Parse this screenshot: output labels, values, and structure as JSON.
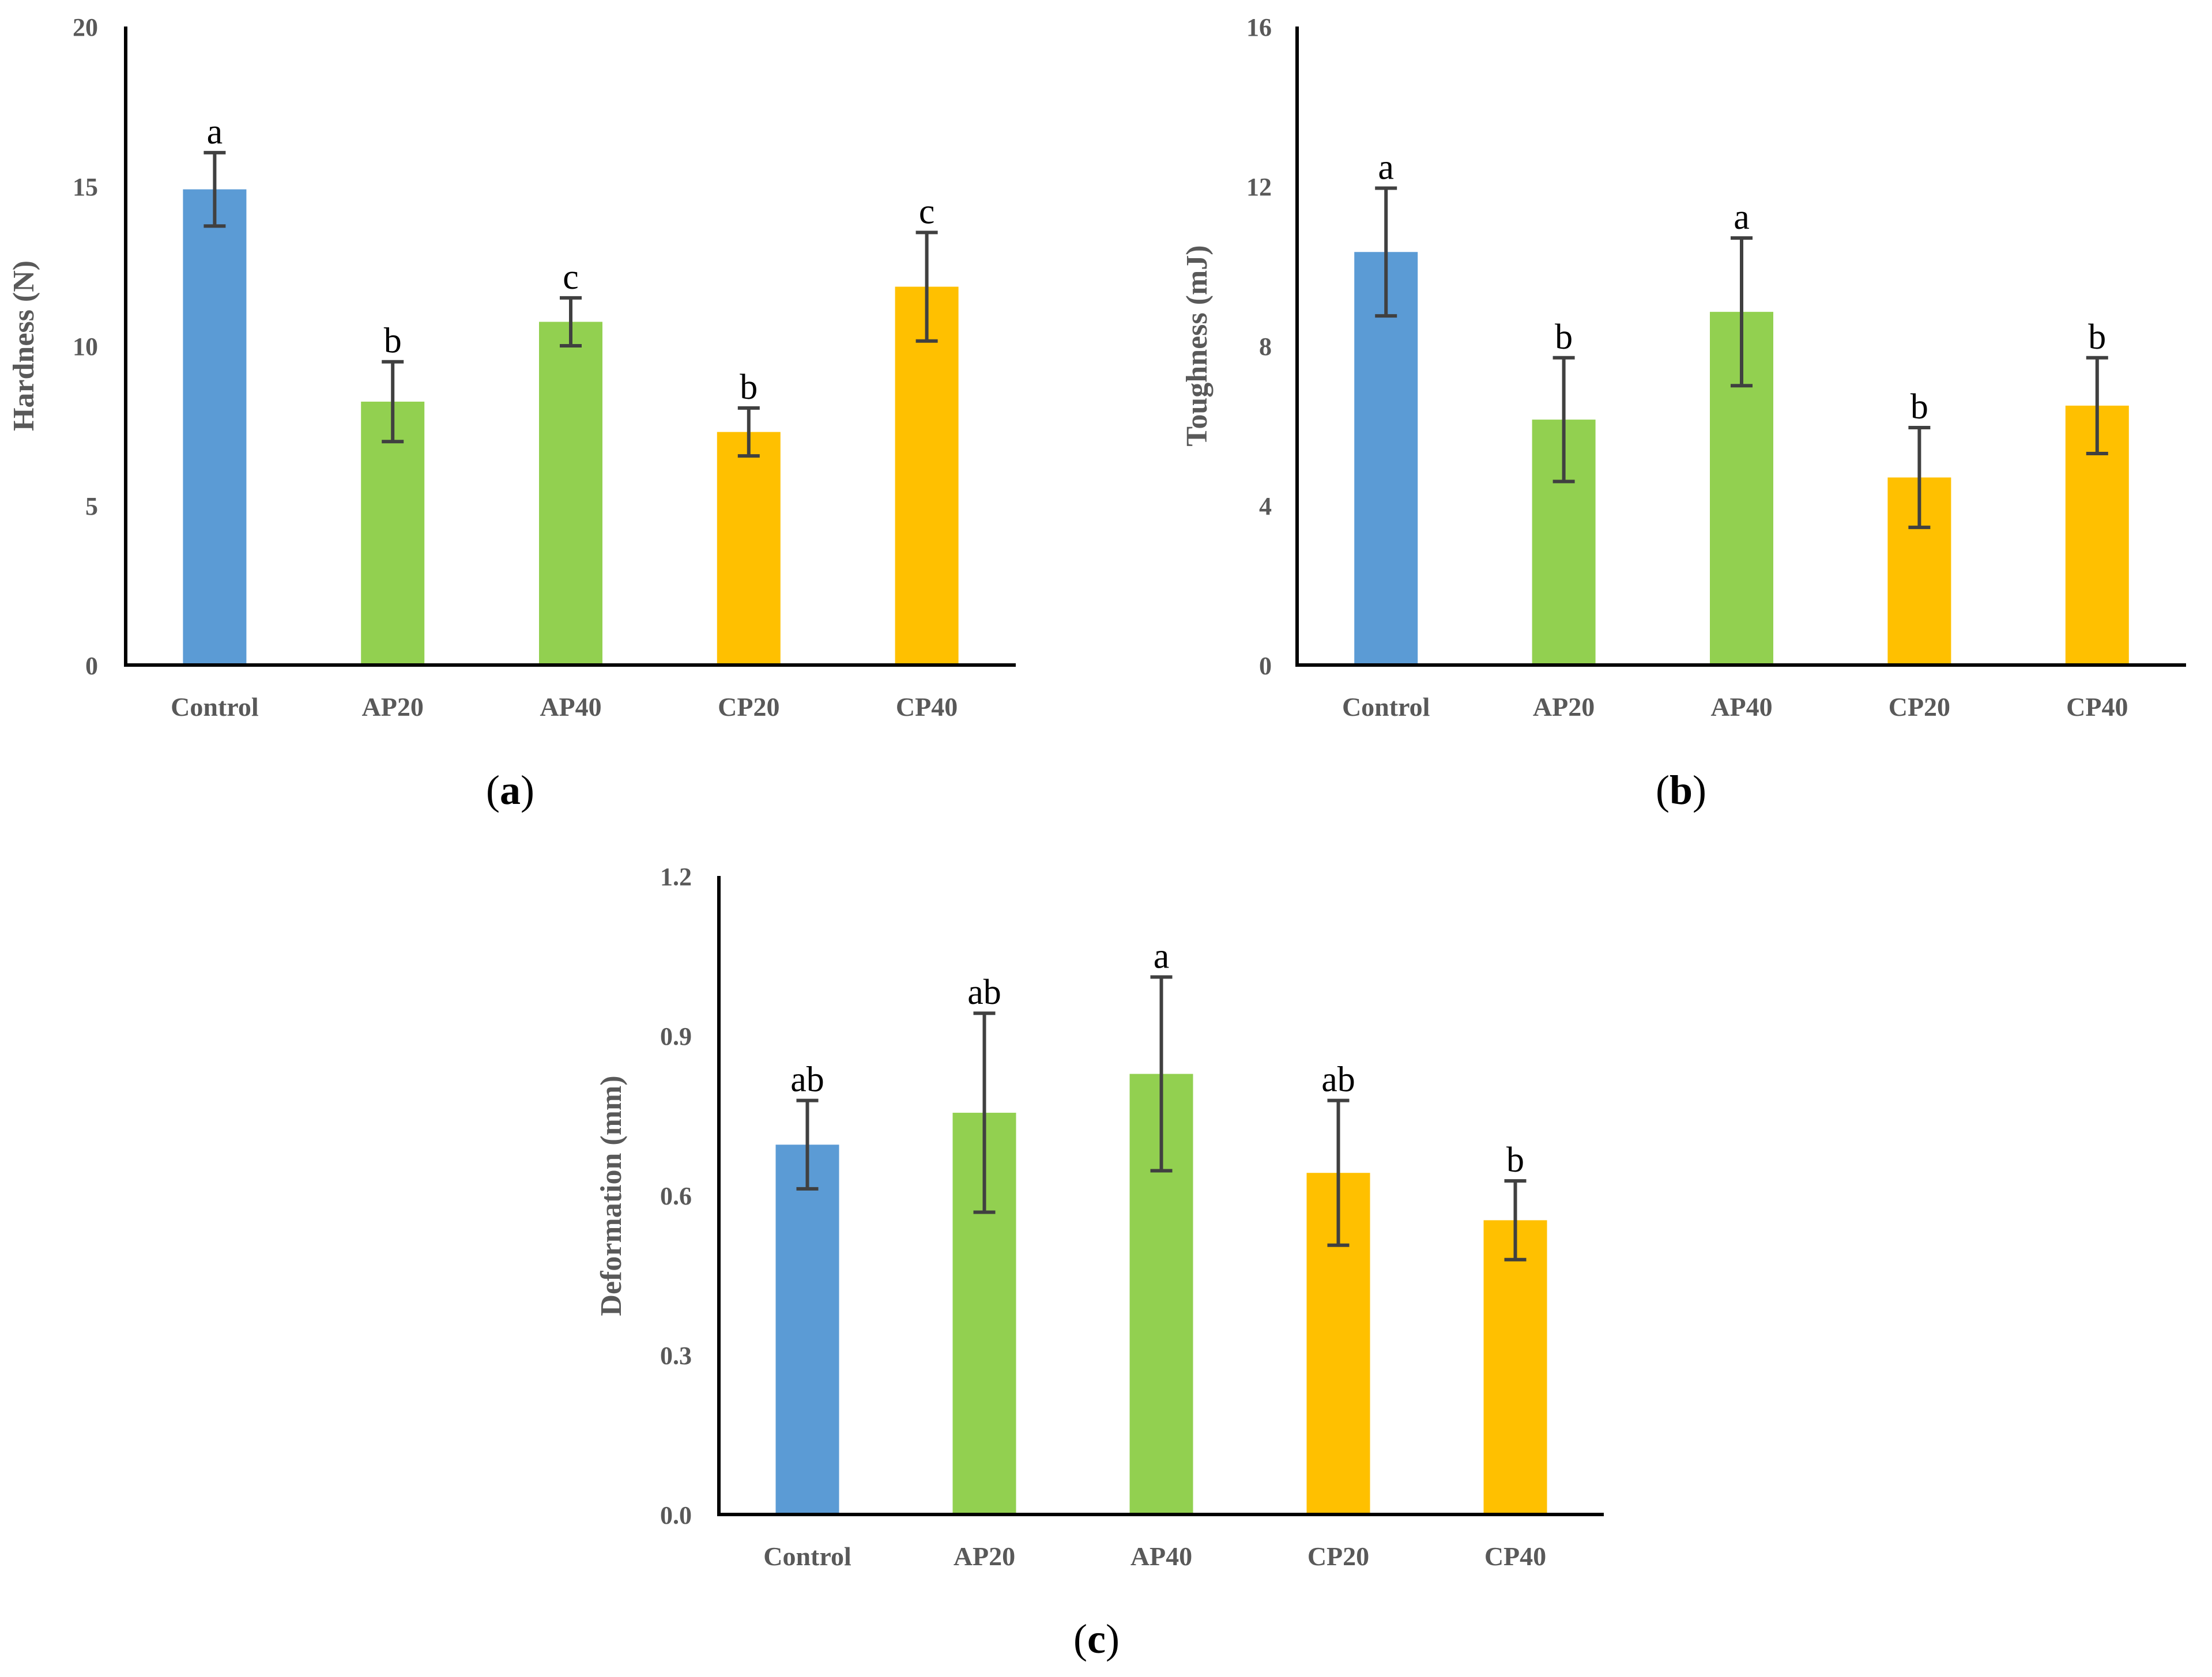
{
  "colors": {
    "control": "#5B9BD5",
    "ap": "#92D050",
    "cp": "#FFC000",
    "axis": "#000000",
    "error_bar": "#404040",
    "tick_text": "#595959"
  },
  "chart_data": [
    {
      "type": "bar",
      "panel": "a",
      "panel_label": {
        "open": "(",
        "letter": "a",
        "close": ")"
      },
      "ylabel": "Hardness (N)",
      "xlabel": "",
      "categories": [
        "Control",
        "AP20",
        "AP40",
        "CP20",
        "CP40"
      ],
      "values": [
        14.9,
        8.25,
        10.75,
        7.3,
        11.85
      ],
      "errors": [
        1.15,
        1.25,
        0.75,
        0.75,
        1.7
      ],
      "letters": [
        "a",
        "b",
        "c",
        "b",
        "c"
      ],
      "bar_colors": [
        "control",
        "ap",
        "ap",
        "cp",
        "cp"
      ],
      "ylim": [
        0,
        20
      ],
      "yticks": [
        0,
        5,
        10,
        15,
        20
      ],
      "ytick_labels": [
        "0",
        "5",
        "10",
        "15",
        "20"
      ],
      "grid": false
    },
    {
      "type": "bar",
      "panel": "b",
      "panel_label": {
        "open": "(",
        "letter": "b",
        "close": ")"
      },
      "ylabel": "Toughness (mJ)",
      "xlabel": "",
      "categories": [
        "Control",
        "AP20",
        "AP40",
        "CP20",
        "CP40"
      ],
      "values": [
        10.35,
        6.15,
        8.85,
        4.7,
        6.5
      ],
      "errors": [
        1.6,
        1.55,
        1.85,
        1.25,
        1.2
      ],
      "letters": [
        "a",
        "b",
        "a",
        "b",
        "b"
      ],
      "bar_colors": [
        "control",
        "ap",
        "ap",
        "cp",
        "cp"
      ],
      "ylim": [
        0,
        16
      ],
      "yticks": [
        0,
        4,
        8,
        12,
        16
      ],
      "ytick_labels": [
        "0",
        "4",
        "8",
        "12",
        "16"
      ],
      "grid": false
    },
    {
      "type": "bar",
      "panel": "c",
      "panel_label": {
        "open": "(",
        "letter": "c",
        "close": ")"
      },
      "ylabel": "Deformation (mm)",
      "xlabel": "",
      "categories": [
        "Control",
        "AP20",
        "AP40",
        "CP20",
        "CP40"
      ],
      "values": [
        0.695,
        0.755,
        0.828,
        0.642,
        0.553
      ],
      "errors": [
        0.083,
        0.187,
        0.182,
        0.136,
        0.074
      ],
      "letters": [
        "ab",
        "ab",
        "a",
        "ab",
        "b"
      ],
      "bar_colors": [
        "control",
        "ap",
        "ap",
        "cp",
        "cp"
      ],
      "ylim": [
        0,
        1.2
      ],
      "yticks": [
        0,
        0.3,
        0.6,
        0.9,
        1.2
      ],
      "ytick_labels": [
        "0.0",
        "0.3",
        "0.6",
        "0.9",
        "1.2"
      ],
      "grid": false
    }
  ]
}
